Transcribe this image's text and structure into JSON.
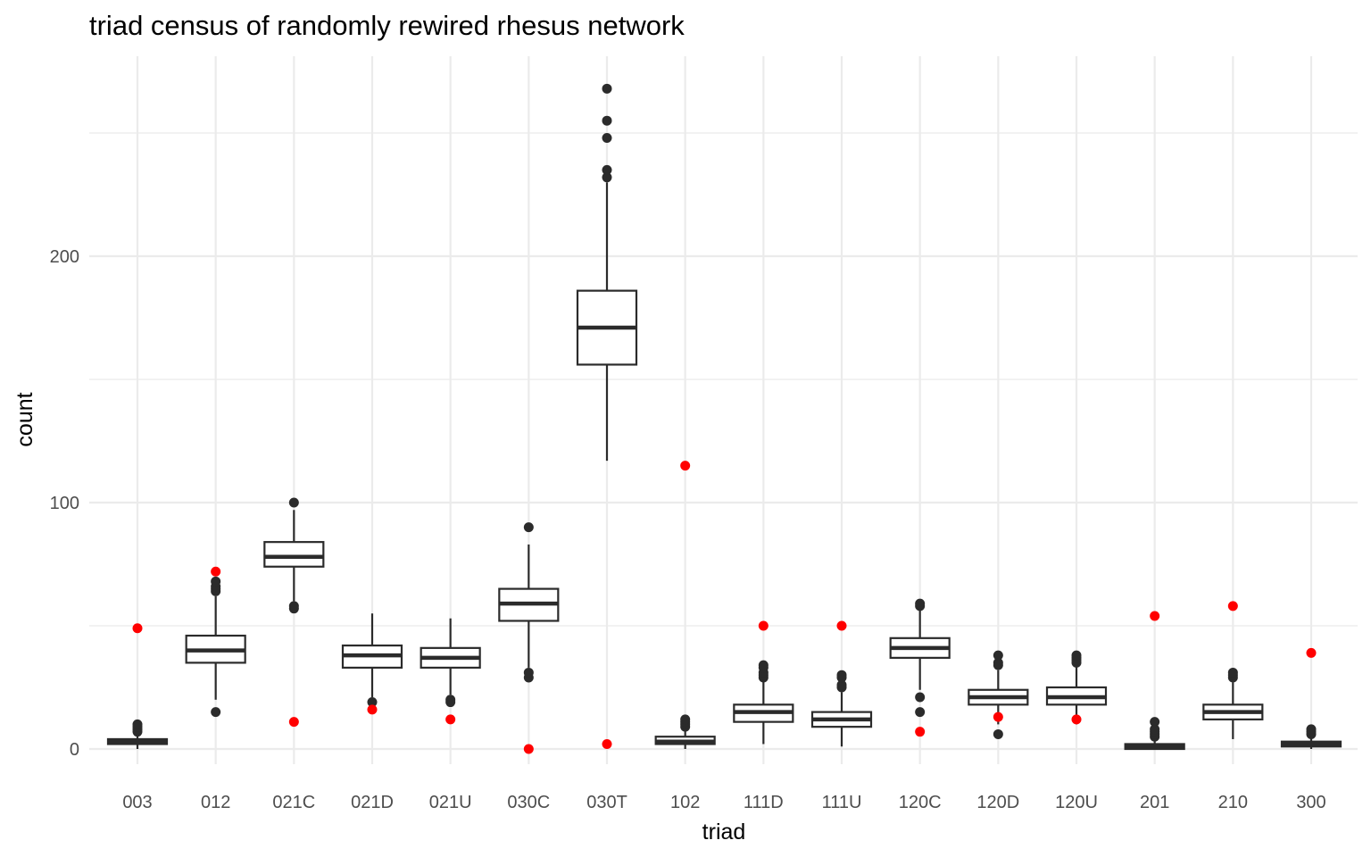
{
  "chart_data": {
    "type": "box",
    "title": "triad census of randomly rewired rhesus network",
    "xlabel": "triad",
    "ylabel": "count",
    "ylim": [
      -11,
      269
    ],
    "yticks": [
      0,
      100,
      200
    ],
    "ytick_labels": [
      "0",
      "100",
      "200"
    ],
    "grid": true,
    "colors": {
      "box": "#2b2b2b",
      "observed": "#ff0000",
      "grid": "#ebebeb"
    },
    "categories": [
      "003",
      "012",
      "021C",
      "021D",
      "021U",
      "030C",
      "030T",
      "102",
      "111D",
      "111U",
      "120C",
      "120D",
      "120U",
      "201",
      "210",
      "300"
    ],
    "boxes": [
      {
        "triad": "003",
        "whisker_low": 0,
        "q1": 2,
        "median": 3,
        "q3": 4,
        "whisker_high": 6,
        "outliers": [
          7,
          8,
          9,
          10
        ]
      },
      {
        "triad": "012",
        "whisker_low": 20,
        "q1": 35,
        "median": 40,
        "q3": 46,
        "whisker_high": 62,
        "outliers": [
          15,
          64,
          65,
          66,
          68
        ]
      },
      {
        "triad": "021C",
        "whisker_low": 60,
        "q1": 74,
        "median": 78,
        "q3": 84,
        "whisker_high": 97,
        "outliers": [
          57,
          58,
          100
        ]
      },
      {
        "triad": "021D",
        "whisker_low": 21,
        "q1": 33,
        "median": 38,
        "q3": 42,
        "whisker_high": 55,
        "outliers": [
          19
        ]
      },
      {
        "triad": "021U",
        "whisker_low": 22,
        "q1": 33,
        "median": 37,
        "q3": 41,
        "whisker_high": 53,
        "outliers": [
          19,
          20
        ]
      },
      {
        "triad": "030C",
        "whisker_low": 33,
        "q1": 52,
        "median": 59,
        "q3": 65,
        "whisker_high": 83,
        "outliers": [
          29,
          31,
          90
        ]
      },
      {
        "triad": "030T",
        "whisker_low": 117,
        "q1": 156,
        "median": 171,
        "q3": 186,
        "whisker_high": 230,
        "outliers": [
          232,
          235,
          248,
          255,
          268
        ]
      },
      {
        "triad": "102",
        "whisker_low": 0,
        "q1": 2,
        "median": 3,
        "q3": 5,
        "whisker_high": 8,
        "outliers": [
          9,
          10,
          11,
          12
        ]
      },
      {
        "triad": "111D",
        "whisker_low": 2,
        "q1": 11,
        "median": 15,
        "q3": 18,
        "whisker_high": 28,
        "outliers": [
          29,
          30,
          31,
          33,
          34
        ]
      },
      {
        "triad": "111U",
        "whisker_low": 1,
        "q1": 9,
        "median": 12,
        "q3": 15,
        "whisker_high": 23,
        "outliers": [
          25,
          26,
          29,
          30
        ]
      },
      {
        "triad": "120C",
        "whisker_low": 24,
        "q1": 37,
        "median": 41,
        "q3": 45,
        "whisker_high": 57,
        "outliers": [
          15,
          21,
          58,
          59
        ]
      },
      {
        "triad": "120D",
        "whisker_low": 10,
        "q1": 18,
        "median": 21,
        "q3": 24,
        "whisker_high": 32,
        "outliers": [
          6,
          34,
          35,
          38
        ]
      },
      {
        "triad": "120U",
        "whisker_low": 10,
        "q1": 18,
        "median": 21,
        "q3": 25,
        "whisker_high": 34,
        "outliers": [
          35,
          36,
          37,
          38
        ]
      },
      {
        "triad": "201",
        "whisker_low": 0,
        "q1": 0,
        "median": 1,
        "q3": 2,
        "whisker_high": 4,
        "outliers": [
          5,
          6,
          7,
          8,
          11
        ]
      },
      {
        "triad": "210",
        "whisker_low": 4,
        "q1": 12,
        "median": 15,
        "q3": 18,
        "whisker_high": 27,
        "outliers": [
          29,
          30,
          31
        ]
      },
      {
        "triad": "300",
        "whisker_low": 0,
        "q1": 1,
        "median": 2,
        "q3": 3,
        "whisker_high": 5,
        "outliers": [
          6,
          7,
          8
        ]
      }
    ],
    "observed": [
      {
        "triad": "003",
        "value": 49
      },
      {
        "triad": "012",
        "value": 72
      },
      {
        "triad": "021C",
        "value": 11
      },
      {
        "triad": "021D",
        "value": 16
      },
      {
        "triad": "021U",
        "value": 12
      },
      {
        "triad": "030C",
        "value": 0
      },
      {
        "triad": "030T",
        "value": 2
      },
      {
        "triad": "102",
        "value": 115
      },
      {
        "triad": "111D",
        "value": 50
      },
      {
        "triad": "111U",
        "value": 50
      },
      {
        "triad": "120C",
        "value": 7
      },
      {
        "triad": "120D",
        "value": 13
      },
      {
        "triad": "120U",
        "value": 12
      },
      {
        "triad": "201",
        "value": 54
      },
      {
        "triad": "210",
        "value": 58
      },
      {
        "triad": "300",
        "value": 39
      }
    ]
  }
}
